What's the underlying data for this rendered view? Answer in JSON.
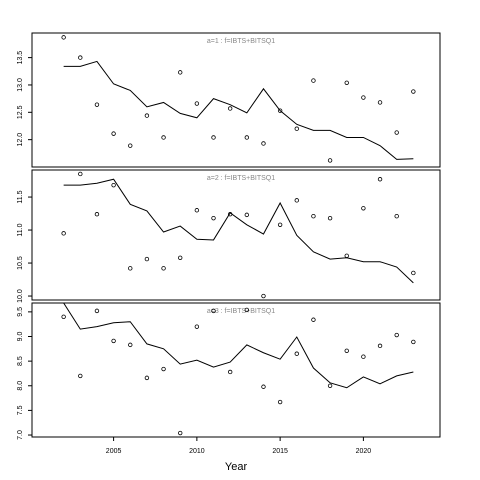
{
  "chart_data": [
    {
      "type": "line",
      "title": "a=1 : f=IBTS+BITSQ1",
      "x": [
        2002,
        2003,
        2004,
        2005,
        2006,
        2007,
        2008,
        2009,
        2010,
        2011,
        2012,
        2013,
        2014,
        2015,
        2016,
        2017,
        2018,
        2019,
        2020,
        2021,
        2022,
        2023
      ],
      "points": [
        13.87,
        13.5,
        12.64,
        12.11,
        11.89,
        12.44,
        12.04,
        13.23,
        12.66,
        12.04,
        12.57,
        12.04,
        11.93,
        12.53,
        12.2,
        13.08,
        11.62,
        13.04,
        12.77,
        12.68,
        12.13,
        12.88
      ],
      "values": [
        13.34,
        13.34,
        13.43,
        13.02,
        12.9,
        12.6,
        12.68,
        12.48,
        12.4,
        12.75,
        12.64,
        12.49,
        12.93,
        12.53,
        12.28,
        12.17,
        12.17,
        12.04,
        12.04,
        11.89,
        11.64,
        11.65
      ],
      "xlim": [
        2000.1,
        2024.6
      ],
      "ylim": [
        11.5,
        13.95
      ],
      "yticks": [
        {
          "value": 12,
          "label": "12.0"
        },
        12.5,
        {
          "value": 13,
          "label": "13.0"
        },
        13.5
      ]
    },
    {
      "type": "line",
      "title": "a=2 : f=IBTS+BITSQ1",
      "x": [
        2002,
        2003,
        2004,
        2005,
        2006,
        2007,
        2008,
        2009,
        2010,
        2011,
        2012,
        2013,
        2014,
        2015,
        2016,
        2017,
        2018,
        2019,
        2020,
        2021,
        2022,
        2023
      ],
      "points": [
        10.95,
        11.85,
        11.24,
        11.68,
        10.42,
        10.56,
        10.42,
        10.58,
        11.3,
        11.18,
        11.24,
        11.23,
        10.0,
        11.08,
        11.45,
        11.21,
        11.18,
        10.61,
        11.33,
        11.77,
        11.21,
        10.35
      ],
      "values": [
        11.68,
        11.68,
        11.71,
        11.77,
        11.39,
        11.29,
        10.97,
        11.06,
        10.86,
        10.85,
        11.26,
        11.08,
        10.94,
        11.41,
        10.92,
        10.67,
        10.56,
        10.58,
        10.52,
        10.52,
        10.44,
        10.2
      ],
      "xlim": [
        2000.1,
        2024.6
      ],
      "ylim": [
        9.94,
        11.91
      ],
      "yticks": [
        {
          "value": 10,
          "label": "10.0"
        },
        10.5,
        {
          "value": 11,
          "label": "11.0"
        },
        11.5
      ]
    },
    {
      "type": "line",
      "title": "a=3 : f=IBTS+BITSQ1",
      "x": [
        2002,
        2003,
        2004,
        2005,
        2006,
        2007,
        2008,
        2009,
        2010,
        2011,
        2012,
        2013,
        2014,
        2015,
        2016,
        2017,
        2018,
        2019,
        2020,
        2021,
        2022,
        2023
      ],
      "points": [
        9.4,
        8.2,
        9.52,
        8.91,
        8.83,
        8.16,
        8.34,
        7.04,
        9.2,
        9.52,
        8.28,
        9.54,
        7.98,
        7.67,
        8.65,
        9.34,
        8.0,
        8.71,
        8.59,
        8.81,
        9.03,
        8.89
      ],
      "values": [
        9.68,
        9.15,
        9.2,
        9.28,
        9.3,
        8.85,
        8.75,
        8.44,
        8.52,
        8.38,
        8.48,
        8.83,
        8.67,
        8.54,
        8.99,
        8.36,
        8.06,
        7.96,
        8.18,
        8.04,
        8.2,
        8.28
      ],
      "xlim": [
        2000.1,
        2024.6
      ],
      "ylim": [
        6.96,
        9.68
      ],
      "yticks": [
        {
          "value": 7,
          "label": "7.0"
        },
        7.5,
        {
          "value": 8,
          "label": "8.0"
        },
        8.5,
        {
          "value": 9,
          "label": "9.0"
        },
        9.5
      ],
      "xticks": [
        2005,
        2010,
        2015,
        2020
      ],
      "x_label": "Year"
    }
  ]
}
